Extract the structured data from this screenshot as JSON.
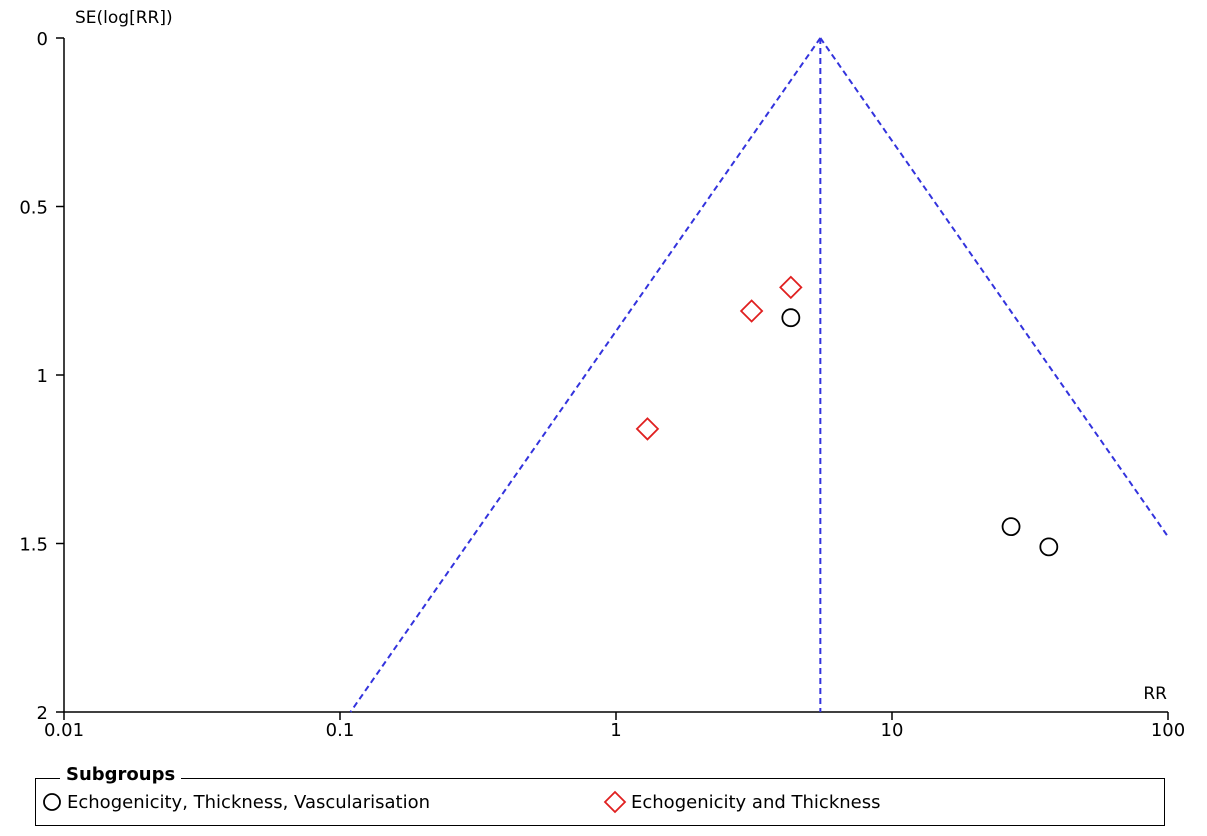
{
  "chart_data": {
    "type": "scatter",
    "subtype": "funnel-plot",
    "title": "",
    "xlabel": "RR",
    "ylabel": "SE(log[RR])",
    "x_scale": "log",
    "xlim": [
      0.01,
      100
    ],
    "ylim": [
      0,
      2
    ],
    "y_reversed": true,
    "x_ticks": [
      0.01,
      0.1,
      1,
      10,
      100
    ],
    "x_tick_labels": [
      "0.01",
      "0.1",
      "1",
      "10",
      "100"
    ],
    "y_ticks": [
      0,
      0.5,
      1,
      1.5,
      2
    ],
    "y_tick_labels": [
      "0",
      "0.5",
      "1",
      "1.5",
      "2"
    ],
    "pooled_estimate": 5.5,
    "funnel_z": 1.96,
    "funnel_color": "#3333dd",
    "grid": false,
    "legend": {
      "title": "Subgroups",
      "placement": "bottom",
      "entries": [
        {
          "label": "Echogenicity, Thickness, Vascularisation",
          "marker": "circle",
          "color": "#000000"
        },
        {
          "label": "Echogenicity and Thickness",
          "marker": "diamond",
          "color": "#e02020"
        }
      ]
    },
    "series": [
      {
        "name": "Echogenicity, Thickness, Vascularisation",
        "marker": "circle",
        "color": "#000000",
        "points": [
          {
            "x": 4.3,
            "y": 0.83
          },
          {
            "x": 27,
            "y": 1.45
          },
          {
            "x": 37,
            "y": 1.51
          }
        ]
      },
      {
        "name": "Echogenicity and Thickness",
        "marker": "diamond",
        "color": "#e02020",
        "points": [
          {
            "x": 4.3,
            "y": 0.74
          },
          {
            "x": 3.1,
            "y": 0.81
          },
          {
            "x": 1.3,
            "y": 1.16
          }
        ]
      }
    ]
  }
}
